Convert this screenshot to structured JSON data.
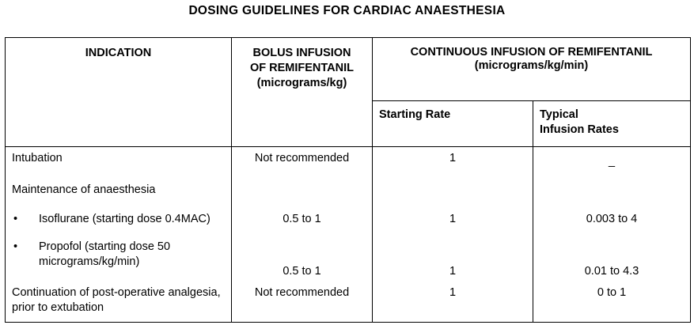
{
  "title": "DOSING GUIDELINES FOR CARDIAC ANAESTHESIA",
  "table": {
    "headers": {
      "indication": "INDICATION",
      "bolus": {
        "label": "BOLUS INFUSION OF REMIFENTANIL",
        "unit": "(micrograms/kg)"
      },
      "continuous": {
        "label": "CONTINUOUS INFUSION OF REMIFENTANIL",
        "unit": "(micrograms/kg/min)"
      },
      "starting_rate": "Starting Rate",
      "typical_rates": "Typical Infusion Rates"
    },
    "rows": [
      {
        "indication": "Intubation",
        "bolus": "Not recommended",
        "starting_rate": "1",
        "typical_rates": "_"
      },
      {
        "indication": "Maintenance of anaesthesia"
      },
      {
        "indication": "Isoflurane (starting dose 0.4MAC)",
        "bullet": true,
        "bolus": "0.5 to 1",
        "starting_rate": "1",
        "typical_rates": "0.003 to 4"
      },
      {
        "indication": "Propofol (starting dose 50 micrograms/kg/min)",
        "bullet": true,
        "bolus": "0.5 to 1",
        "starting_rate": "1",
        "typical_rates": "0.01 to 4.3"
      },
      {
        "indication": "Continuation of post-operative analgesia, prior to extubation",
        "bolus": "Not recommended",
        "starting_rate": "1",
        "typical_rates": "0 to 1"
      }
    ]
  }
}
